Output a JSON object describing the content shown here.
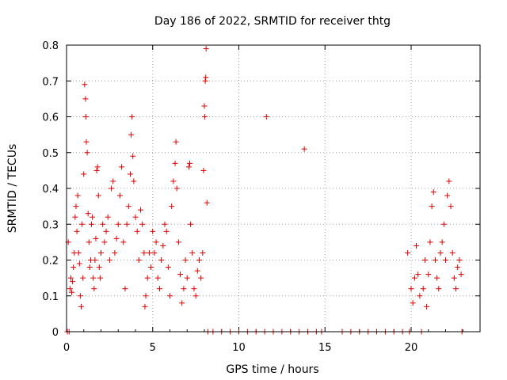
{
  "chart_data": {
    "type": "scatter",
    "title": "Day 186 of 2022, SRMTID for receiver thtg",
    "xlabel": "GPS time / hours",
    "ylabel": "SRMTID / TECUs",
    "xlim": [
      0,
      24
    ],
    "ylim": [
      0,
      0.8
    ],
    "x_ticks": [
      0,
      5,
      10,
      15,
      20
    ],
    "y_ticks": [
      0,
      0.1,
      0.2,
      0.3,
      0.4,
      0.5,
      0.6,
      0.7,
      0.8
    ],
    "x_tick_labels": [
      "0",
      "5",
      "10",
      "15",
      "20"
    ],
    "y_tick_labels": [
      "0",
      "0.1",
      "0.2",
      "0.3",
      "0.4",
      "0.5",
      "0.6",
      "0.7",
      "0.8"
    ],
    "grid": true,
    "marker": "+",
    "series": [
      {
        "name": "SRMTID",
        "color": "#dd0000",
        "points": [
          [
            0.05,
            0.0
          ],
          [
            0.1,
            0.25
          ],
          [
            0.15,
            0.0
          ],
          [
            0.2,
            0.12
          ],
          [
            0.25,
            0.15
          ],
          [
            0.3,
            0.11
          ],
          [
            0.35,
            0.14
          ],
          [
            0.4,
            0.18
          ],
          [
            0.45,
            0.22
          ],
          [
            0.5,
            0.32
          ],
          [
            0.55,
            0.35
          ],
          [
            0.6,
            0.28
          ],
          [
            0.65,
            0.38
          ],
          [
            0.7,
            0.22
          ],
          [
            0.75,
            0.19
          ],
          [
            0.8,
            0.1
          ],
          [
            0.85,
            0.07
          ],
          [
            0.9,
            0.3
          ],
          [
            0.95,
            0.15
          ],
          [
            1.0,
            0.44
          ],
          [
            1.05,
            0.69
          ],
          [
            1.1,
            0.65
          ],
          [
            1.12,
            0.6
          ],
          [
            1.15,
            0.53
          ],
          [
            1.2,
            0.5
          ],
          [
            1.25,
            0.33
          ],
          [
            1.3,
            0.25
          ],
          [
            1.35,
            0.18
          ],
          [
            1.4,
            0.2
          ],
          [
            1.45,
            0.3
          ],
          [
            1.5,
            0.32
          ],
          [
            1.55,
            0.15
          ],
          [
            1.6,
            0.12
          ],
          [
            1.65,
            0.2
          ],
          [
            1.7,
            0.26
          ],
          [
            1.75,
            0.45
          ],
          [
            1.8,
            0.46
          ],
          [
            1.85,
            0.38
          ],
          [
            1.9,
            0.18
          ],
          [
            1.95,
            0.15
          ],
          [
            2.0,
            0.22
          ],
          [
            2.1,
            0.3
          ],
          [
            2.2,
            0.25
          ],
          [
            2.3,
            0.28
          ],
          [
            2.4,
            0.32
          ],
          [
            2.5,
            0.2
          ],
          [
            2.6,
            0.4
          ],
          [
            2.7,
            0.42
          ],
          [
            2.8,
            0.22
          ],
          [
            2.9,
            0.26
          ],
          [
            3.0,
            0.3
          ],
          [
            3.1,
            0.38
          ],
          [
            3.2,
            0.46
          ],
          [
            3.3,
            0.25
          ],
          [
            3.4,
            0.12
          ],
          [
            3.5,
            0.3
          ],
          [
            3.6,
            0.35
          ],
          [
            3.7,
            0.44
          ],
          [
            3.75,
            0.55
          ],
          [
            3.8,
            0.6
          ],
          [
            3.85,
            0.49
          ],
          [
            3.9,
            0.42
          ],
          [
            4.0,
            0.32
          ],
          [
            4.1,
            0.28
          ],
          [
            4.2,
            0.2
          ],
          [
            4.3,
            0.34
          ],
          [
            4.4,
            0.3
          ],
          [
            4.5,
            0.22
          ],
          [
            4.55,
            0.07
          ],
          [
            4.6,
            0.1
          ],
          [
            4.7,
            0.15
          ],
          [
            4.8,
            0.22
          ],
          [
            4.9,
            0.18
          ],
          [
            5.0,
            0.28
          ],
          [
            5.1,
            0.22
          ],
          [
            5.2,
            0.25
          ],
          [
            5.3,
            0.15
          ],
          [
            5.4,
            0.12
          ],
          [
            5.5,
            0.2
          ],
          [
            5.6,
            0.24
          ],
          [
            5.7,
            0.3
          ],
          [
            5.8,
            0.28
          ],
          [
            5.9,
            0.18
          ],
          [
            6.0,
            0.1
          ],
          [
            6.1,
            0.35
          ],
          [
            6.2,
            0.42
          ],
          [
            6.3,
            0.47
          ],
          [
            6.35,
            0.53
          ],
          [
            6.4,
            0.4
          ],
          [
            6.5,
            0.25
          ],
          [
            6.6,
            0.16
          ],
          [
            6.7,
            0.08
          ],
          [
            6.8,
            0.12
          ],
          [
            6.9,
            0.2
          ],
          [
            7.0,
            0.15
          ],
          [
            7.1,
            0.46
          ],
          [
            7.15,
            0.47
          ],
          [
            7.2,
            0.3
          ],
          [
            7.3,
            0.22
          ],
          [
            7.4,
            0.12
          ],
          [
            7.5,
            0.1
          ],
          [
            7.6,
            0.17
          ],
          [
            7.7,
            0.2
          ],
          [
            7.8,
            0.15
          ],
          [
            7.9,
            0.22
          ],
          [
            7.95,
            0.45
          ],
          [
            8.0,
            0.63
          ],
          [
            8.02,
            0.6
          ],
          [
            8.05,
            0.7
          ],
          [
            8.08,
            0.71
          ],
          [
            8.1,
            0.79
          ],
          [
            8.15,
            0.36
          ],
          [
            8.2,
            0.0
          ],
          [
            8.5,
            0.0
          ],
          [
            9.0,
            0.0
          ],
          [
            9.5,
            0.0
          ],
          [
            10.0,
            0.0
          ],
          [
            10.5,
            0.0
          ],
          [
            11.0,
            0.0
          ],
          [
            11.5,
            0.0
          ],
          [
            11.6,
            0.6
          ],
          [
            12.0,
            0.0
          ],
          [
            12.5,
            0.0
          ],
          [
            13.0,
            0.0
          ],
          [
            13.5,
            0.0
          ],
          [
            13.8,
            0.51
          ],
          [
            14.0,
            0.0
          ],
          [
            14.5,
            0.0
          ],
          [
            14.8,
            0.0
          ],
          [
            16.0,
            0.0
          ],
          [
            16.5,
            0.0
          ],
          [
            17.0,
            0.0
          ],
          [
            17.5,
            0.0
          ],
          [
            18.0,
            0.0
          ],
          [
            18.5,
            0.0
          ],
          [
            19.0,
            0.0
          ],
          [
            19.5,
            0.0
          ],
          [
            19.9,
            0.0
          ],
          [
            19.8,
            0.22
          ],
          [
            20.0,
            0.12
          ],
          [
            20.1,
            0.08
          ],
          [
            20.2,
            0.15
          ],
          [
            20.3,
            0.24
          ],
          [
            20.4,
            0.16
          ],
          [
            20.5,
            0.1
          ],
          [
            20.6,
            0.0
          ],
          [
            20.7,
            0.12
          ],
          [
            20.8,
            0.2
          ],
          [
            20.9,
            0.07
          ],
          [
            21.0,
            0.16
          ],
          [
            21.1,
            0.25
          ],
          [
            21.2,
            0.35
          ],
          [
            21.3,
            0.39
          ],
          [
            21.4,
            0.2
          ],
          [
            21.5,
            0.15
          ],
          [
            21.6,
            0.12
          ],
          [
            21.7,
            0.22
          ],
          [
            21.8,
            0.25
          ],
          [
            21.9,
            0.3
          ],
          [
            22.0,
            0.2
          ],
          [
            22.1,
            0.38
          ],
          [
            22.2,
            0.42
          ],
          [
            22.3,
            0.35
          ],
          [
            22.4,
            0.22
          ],
          [
            22.5,
            0.15
          ],
          [
            22.6,
            0.12
          ],
          [
            22.7,
            0.18
          ],
          [
            22.8,
            0.2
          ],
          [
            22.9,
            0.16
          ],
          [
            22.95,
            0.0
          ]
        ]
      }
    ]
  }
}
